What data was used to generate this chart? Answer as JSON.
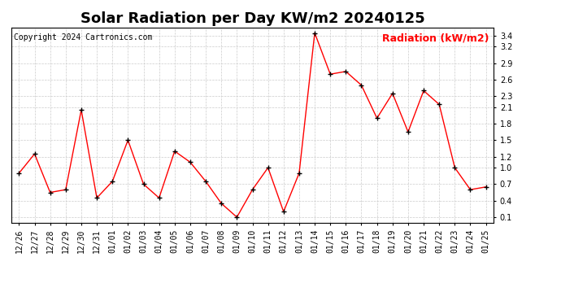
{
  "title": "Solar Radiation per Day KW/m2 20240125",
  "copyright": "Copyright 2024 Cartronics.com",
  "legend_label": "Radiation (kW/m2)",
  "dates": [
    "12/26",
    "12/27",
    "12/28",
    "12/29",
    "12/30",
    "12/31",
    "01/01",
    "01/02",
    "01/03",
    "01/04",
    "01/05",
    "01/06",
    "01/07",
    "01/08",
    "01/09",
    "01/10",
    "01/11",
    "01/12",
    "01/13",
    "01/14",
    "01/15",
    "01/16",
    "01/17",
    "01/18",
    "01/19",
    "01/20",
    "01/21",
    "01/22",
    "01/23",
    "01/24",
    "01/25"
  ],
  "values": [
    0.9,
    1.25,
    0.55,
    0.6,
    2.05,
    0.45,
    0.75,
    1.5,
    0.7,
    0.45,
    1.3,
    1.1,
    0.75,
    0.35,
    0.1,
    0.6,
    1.0,
    0.2,
    0.9,
    3.45,
    2.7,
    2.75,
    2.5,
    1.9,
    2.35,
    1.65,
    2.4,
    2.15,
    1.0,
    0.6,
    0.65
  ],
  "line_color": "red",
  "marker_color": "black",
  "ylim": [
    0.0,
    3.55
  ],
  "yticks": [
    0.1,
    0.4,
    0.7,
    1.0,
    1.2,
    1.5,
    1.8,
    2.1,
    2.3,
    2.6,
    2.9,
    3.2,
    3.4
  ],
  "background_color": "#ffffff",
  "grid_color": "#cccccc",
  "title_fontsize": 13,
  "tick_fontsize": 7,
  "copyright_fontsize": 7,
  "legend_fontsize": 9
}
